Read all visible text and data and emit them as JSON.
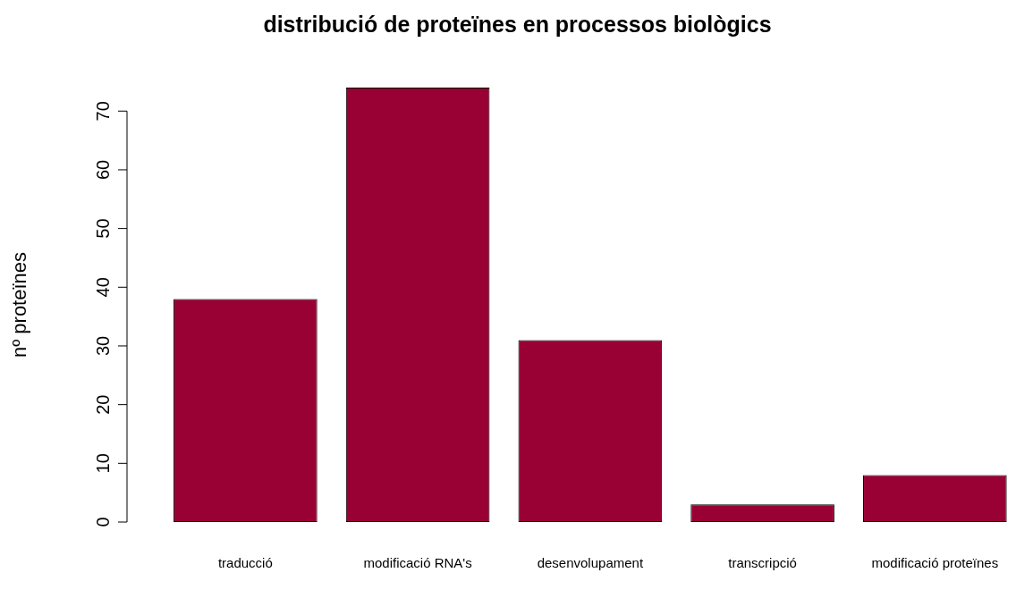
{
  "chart_data": {
    "type": "bar",
    "title": "distribució de proteïnes en processos biològics",
    "ylabel": "nº proteïnes",
    "categories": [
      "traducció",
      "modificació RNA's",
      "desenvolupament",
      "transcripció",
      "modificació proteïnes"
    ],
    "values": [
      38,
      74,
      31,
      3,
      8
    ],
    "color": "#990033",
    "ylim": [
      0,
      74
    ],
    "yticks": [
      0,
      10,
      20,
      30,
      40,
      50,
      60,
      70
    ],
    "grid": false,
    "legend": false
  }
}
